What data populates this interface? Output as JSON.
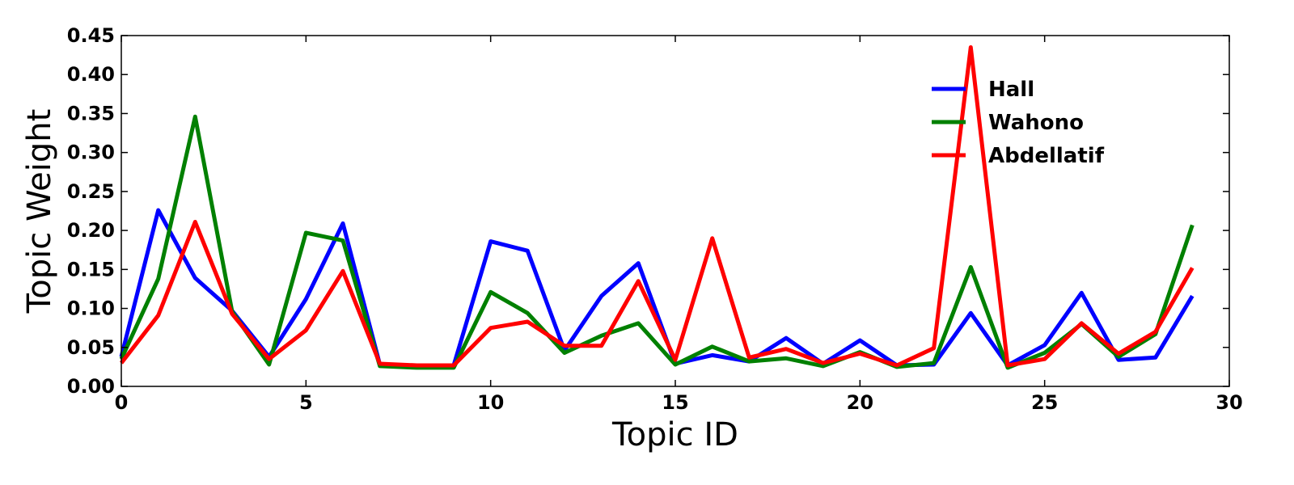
{
  "chart_data": {
    "type": "line",
    "title": "",
    "xlabel": "Topic ID",
    "ylabel": "Topic Weight",
    "xlim": [
      0,
      30
    ],
    "ylim": [
      0,
      0.45
    ],
    "xticks": [
      0,
      5,
      10,
      15,
      20,
      25,
      30
    ],
    "yticks": [
      0,
      0.05,
      0.1,
      0.15,
      0.2,
      0.25,
      0.3,
      0.35,
      0.4,
      0.45
    ],
    "xtick_labels": [
      "0",
      "5",
      "10",
      "15",
      "20",
      "25",
      "30"
    ],
    "ytick_labels": [
      "0.00",
      "0.05",
      "0.10",
      "0.15",
      "0.20",
      "0.25",
      "0.30",
      "0.35",
      "0.40",
      "0.45"
    ],
    "grid": false,
    "legend_position": "top-right",
    "x": [
      0,
      1,
      2,
      3,
      4,
      5,
      6,
      7,
      8,
      9,
      10,
      11,
      12,
      13,
      14,
      15,
      16,
      17,
      18,
      19,
      20,
      21,
      22,
      23,
      24,
      25,
      26,
      27,
      28,
      29
    ],
    "series": [
      {
        "name": "Hall",
        "color": "#0000ff",
        "values": [
          0.038,
          0.226,
          0.139,
          0.097,
          0.038,
          0.112,
          0.209,
          0.028,
          0.026,
          0.027,
          0.186,
          0.174,
          0.046,
          0.116,
          0.158,
          0.029,
          0.04,
          0.032,
          0.062,
          0.029,
          0.059,
          0.027,
          0.028,
          0.094,
          0.027,
          0.053,
          0.12,
          0.034,
          0.037,
          0.116
        ]
      },
      {
        "name": "Wahono",
        "color": "#008000",
        "values": [
          0.035,
          0.138,
          0.346,
          0.096,
          0.028,
          0.197,
          0.187,
          0.026,
          0.024,
          0.024,
          0.121,
          0.094,
          0.043,
          0.065,
          0.081,
          0.028,
          0.051,
          0.032,
          0.036,
          0.026,
          0.044,
          0.025,
          0.03,
          0.153,
          0.024,
          0.043,
          0.08,
          0.038,
          0.067,
          0.207
        ]
      },
      {
        "name": "Abdellatif",
        "color": "#ff0000",
        "values": [
          0.03,
          0.091,
          0.211,
          0.093,
          0.035,
          0.072,
          0.148,
          0.029,
          0.027,
          0.027,
          0.075,
          0.083,
          0.052,
          0.052,
          0.135,
          0.034,
          0.19,
          0.037,
          0.048,
          0.03,
          0.042,
          0.027,
          0.049,
          0.435,
          0.027,
          0.035,
          0.081,
          0.042,
          0.07,
          0.152
        ]
      }
    ]
  }
}
